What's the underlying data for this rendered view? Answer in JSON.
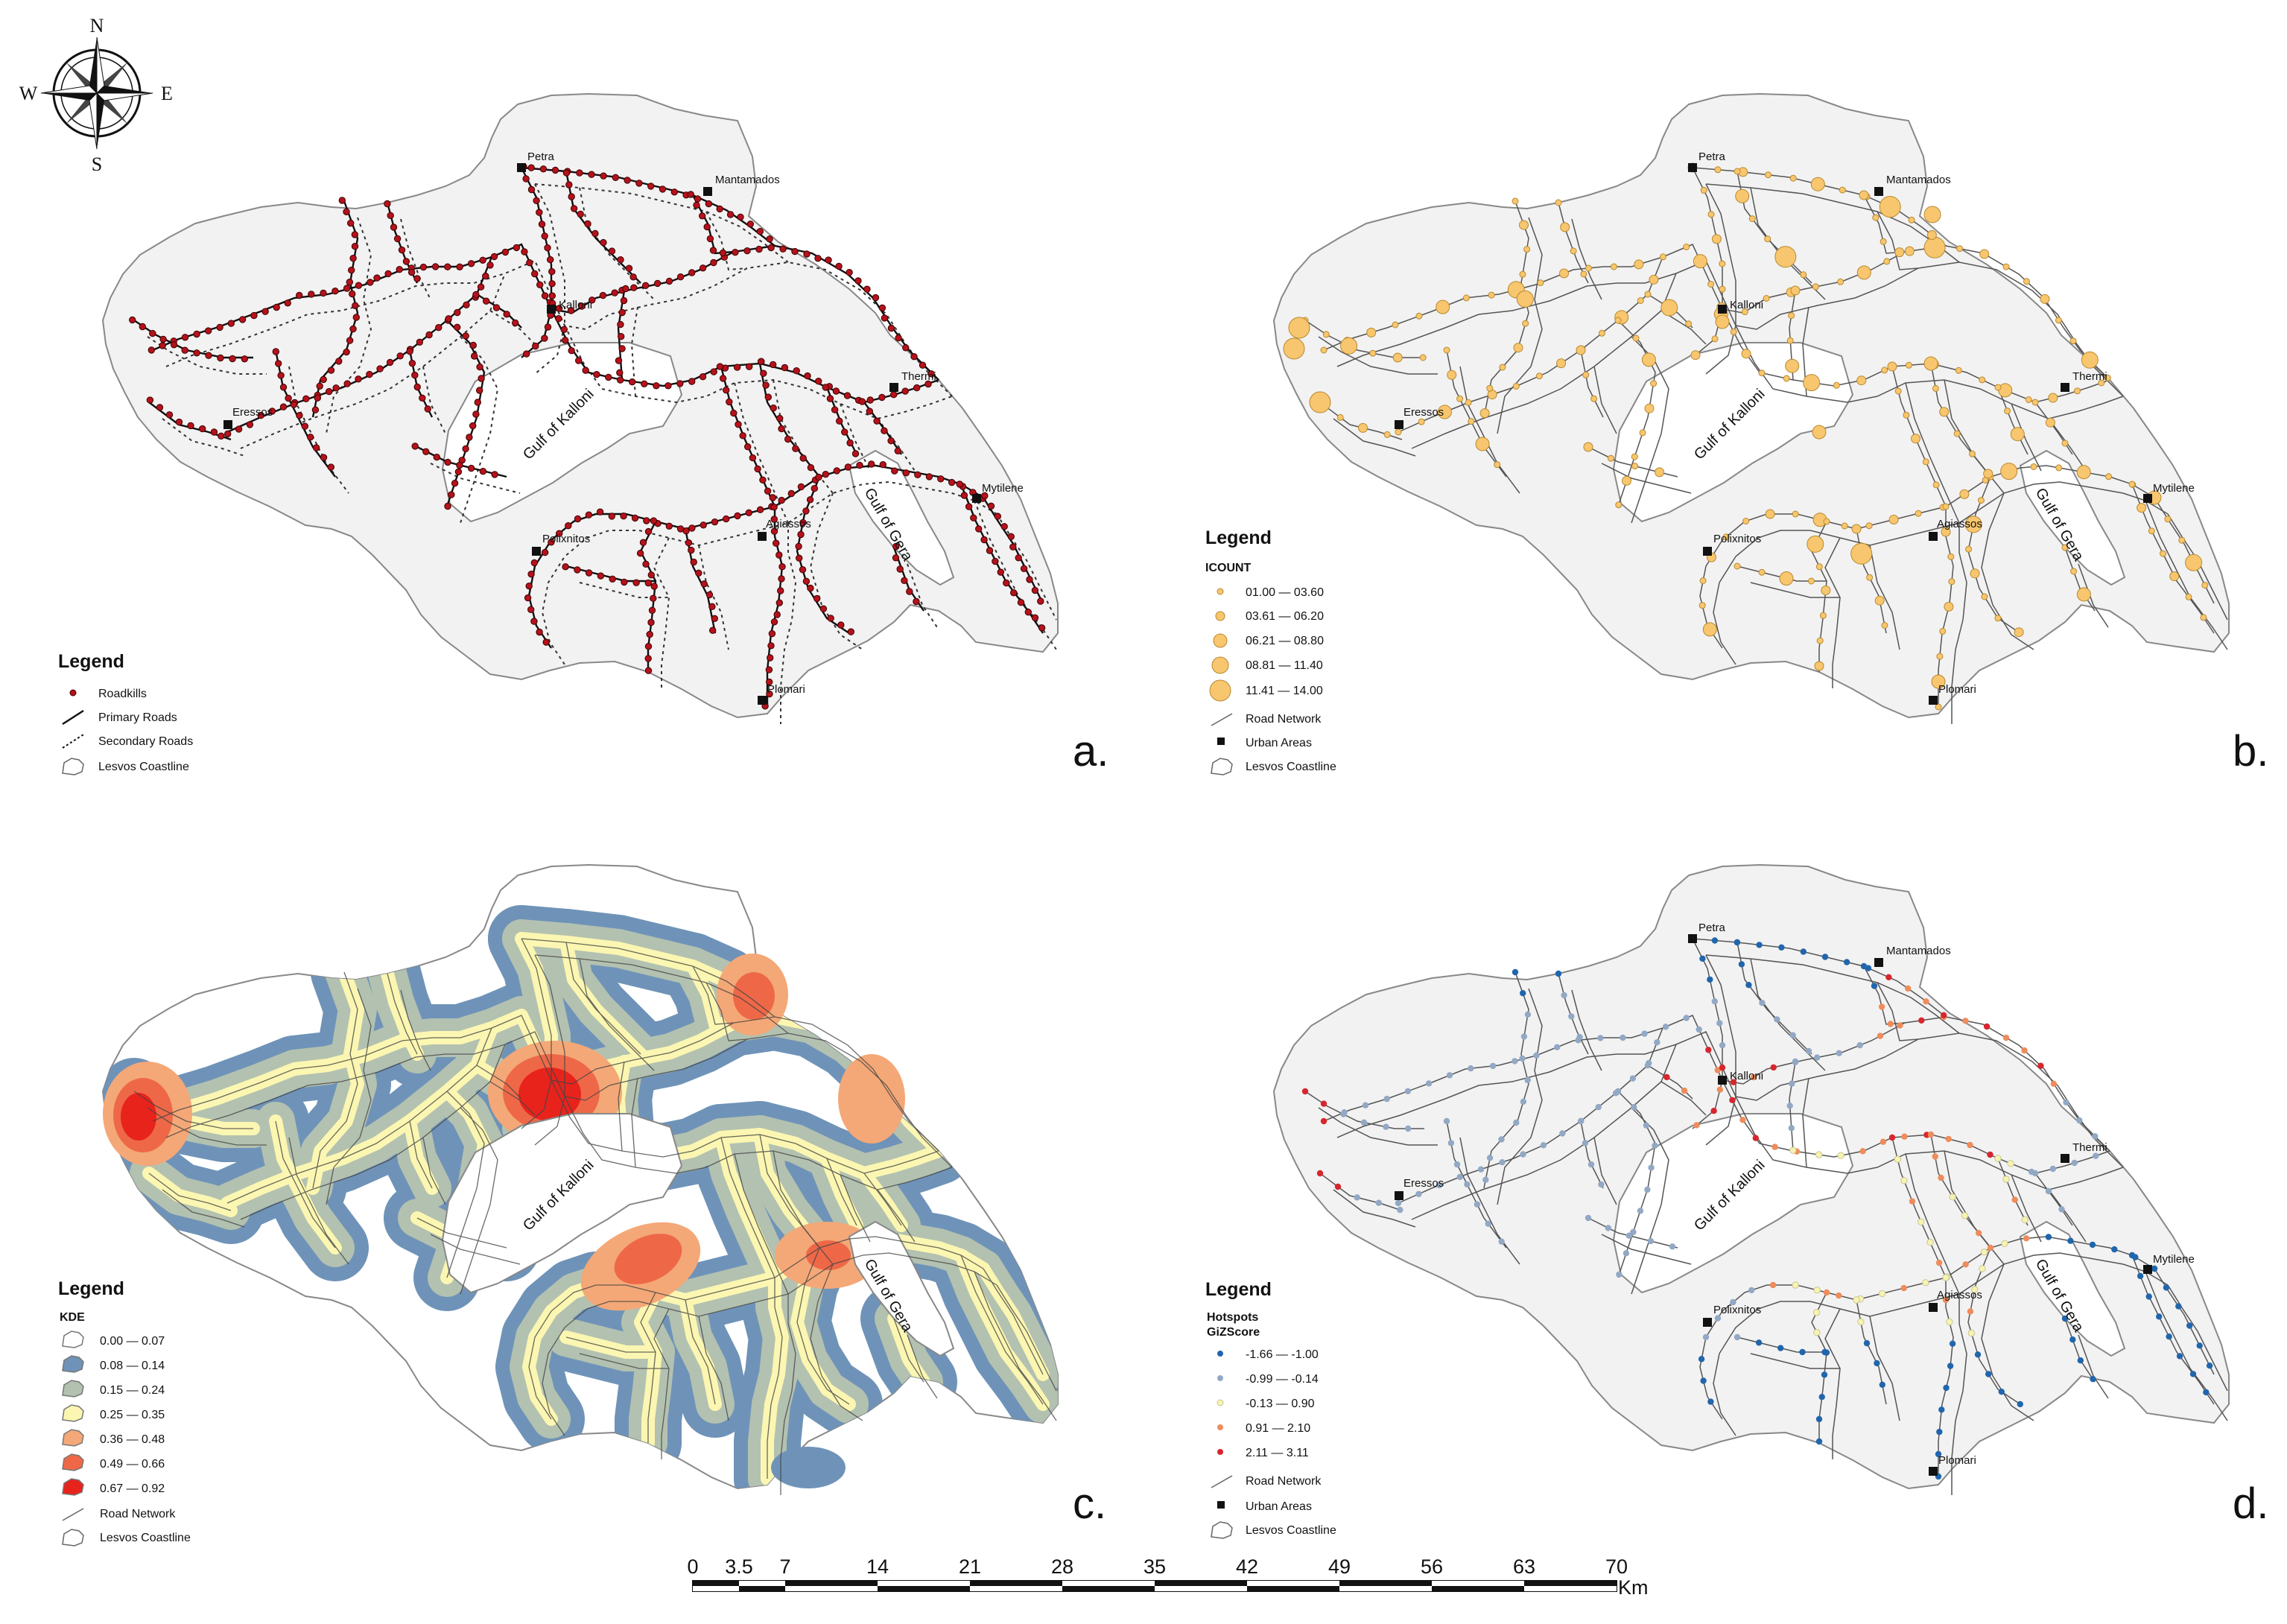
{
  "compass": {
    "north": "N",
    "south": "S",
    "east": "E",
    "west": "W"
  },
  "towns": {
    "petra": "Petra",
    "mantamados": "Mantamados",
    "kalloni": "Kalloni",
    "eressos": "Eressos",
    "thermi": "Thermi",
    "mytilene": "Mytilene",
    "agiassos": "Agiassos",
    "polixnitos": "Polixnitos",
    "plomari": "Plomari"
  },
  "gulfs": {
    "kalloni": "Gulf of Kalloni",
    "gera": "Gulf of Gera"
  },
  "colors": {
    "land": "#f2f2f2",
    "coast": "#888888",
    "road": "#555555",
    "roadkill": "#b5121b",
    "icount": "#f8c66e",
    "kde": [
      "#ffffff",
      "#6f93b8",
      "#b3c1b0",
      "#fbf6b1",
      "#f4a877",
      "#ee6848",
      "#e8231c"
    ],
    "gizscore": [
      "#2166ac",
      "#92a8c4",
      "#f6f3b4",
      "#ee8c5c",
      "#d7262d"
    ]
  },
  "panels": {
    "a": {
      "label": "a.",
      "legend": {
        "title": "Legend",
        "items": [
          "Roadkills",
          "Primary Roads",
          "Secondary Roads",
          "Lesvos Coastline"
        ]
      }
    },
    "b": {
      "label": "b.",
      "legend": {
        "title": "Legend",
        "field": "ICOUNT",
        "classes": [
          "01.00 — 03.60",
          "03.61 — 06.20",
          "06.21 — 08.80",
          "08.81 — 11.40",
          "11.41 — 14.00"
        ],
        "items": [
          "Road Network",
          "Urban Areas",
          "Lesvos Coastline"
        ]
      }
    },
    "c": {
      "label": "c.",
      "legend": {
        "title": "Legend",
        "field": "KDE",
        "classes": [
          "0.00 — 0.07",
          "0.08 — 0.14",
          "0.15 — 0.24",
          "0.25 — 0.35",
          "0.36 — 0.48",
          "0.49 — 0.66",
          "0.67 — 0.92"
        ],
        "items": [
          "Road Network",
          "Lesvos Coastline"
        ]
      }
    },
    "d": {
      "label": "d.",
      "legend": {
        "title": "Legend",
        "field": "Hotspots",
        "subfield": "GiZScore",
        "classes": [
          "-1.66 — -1.00",
          "-0.99 — -0.14",
          "-0.13 — 0.90",
          "0.91 — 2.10",
          "2.11 — 3.11"
        ],
        "items": [
          "Road Network",
          "Urban Areas",
          "Lesvos Coastline"
        ]
      }
    }
  },
  "scale_bar": {
    "ticks": [
      "0",
      "3.5",
      "7",
      "14",
      "21",
      "28",
      "35",
      "42",
      "49",
      "56",
      "63",
      "70"
    ],
    "unit": "Km"
  }
}
